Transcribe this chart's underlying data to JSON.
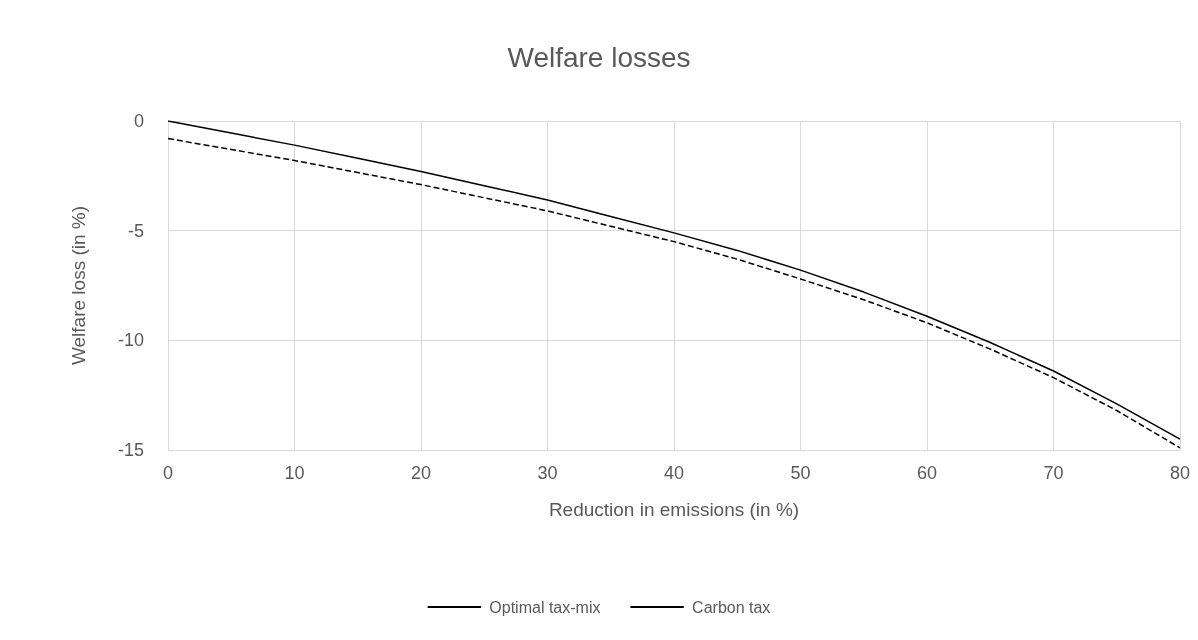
{
  "chart_data": {
    "type": "line",
    "title": "Welfare losses",
    "xlabel": "Reduction in emissions (in %)",
    "ylabel": "Welfare loss (in %)",
    "x": [
      0,
      5,
      10,
      15,
      20,
      25,
      30,
      35,
      40,
      45,
      50,
      55,
      60,
      65,
      70,
      75,
      80
    ],
    "series": [
      {
        "name": "Optimal tax-mix",
        "color": "#000000",
        "line_style": "solid",
        "values": [
          0,
          -0.55,
          -1.1,
          -1.7,
          -2.3,
          -2.95,
          -3.6,
          -4.35,
          -5.1,
          -5.9,
          -6.8,
          -7.8,
          -8.9,
          -10.1,
          -11.4,
          -12.9,
          -14.5
        ]
      },
      {
        "name": "Carbon tax",
        "color": "#000000",
        "line_style": "dashed",
        "values": [
          -0.8,
          -1.3,
          -1.8,
          -2.35,
          -2.9,
          -3.5,
          -4.1,
          -4.8,
          -5.5,
          -6.3,
          -7.2,
          -8.15,
          -9.2,
          -10.4,
          -11.7,
          -13.2,
          -14.9
        ]
      }
    ],
    "xlim": [
      0,
      80
    ],
    "xticks": [
      0,
      10,
      20,
      30,
      40,
      50,
      60,
      70,
      80
    ],
    "ylim": [
      -15,
      0
    ],
    "yticks": [
      -15,
      -10,
      -5,
      0
    ],
    "grid": true,
    "legend": "bottom",
    "marker": "none"
  }
}
